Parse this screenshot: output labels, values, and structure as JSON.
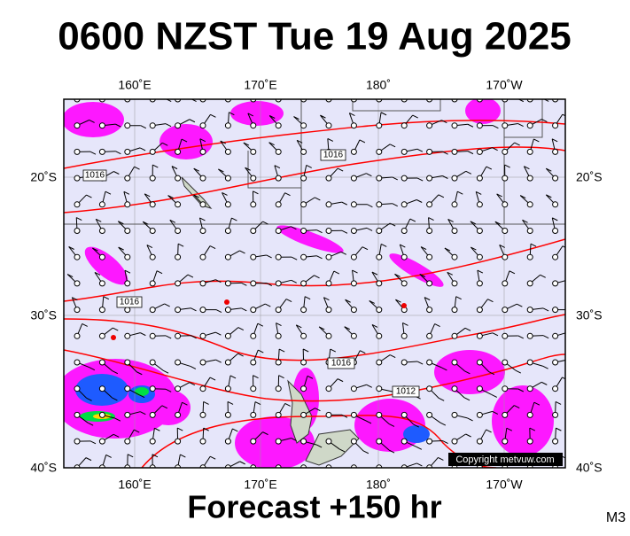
{
  "header": {
    "title": "0600 NZST Tue 19 Aug 2025"
  },
  "map": {
    "top_longitude_labels": [
      "160˚E",
      "170˚E",
      "180˚",
      "170˚W"
    ],
    "bottom_longitude_labels": [
      "160˚E",
      "170˚E",
      "180˚",
      "170˚W"
    ],
    "left_latitude_labels": [
      "20˚S",
      "30˚S",
      "40˚S"
    ],
    "right_latitude_labels": [
      "20˚S",
      "30˚S",
      "40˚S"
    ],
    "isobar_labels": [
      1016,
      1016,
      1016,
      1016,
      1012
    ],
    "copyright": "Copyright metvuw.com"
  },
  "footer": {
    "forecast": "Forecast +150 hr",
    "code": "M3"
  }
}
